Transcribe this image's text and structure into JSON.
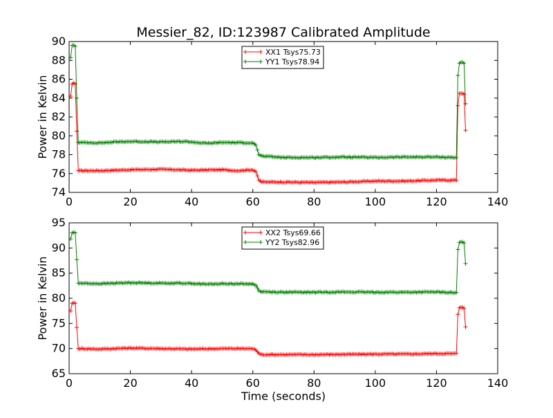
{
  "figure": {
    "title": "Messier_82, ID:123987 Calibrated Amplitude",
    "xlabel": "Time (seconds)"
  },
  "colors": {
    "xx": "#ff0000",
    "yy": "#008000"
  },
  "chart_data": [
    {
      "type": "line",
      "title": "Messier_82, ID:123987 Calibrated Amplitude",
      "xlabel": "",
      "ylabel": "Power in Kelvin",
      "xlim": [
        0,
        140
      ],
      "ylim": [
        74,
        90
      ],
      "xticks": [
        0,
        20,
        40,
        60,
        80,
        100,
        120,
        140
      ],
      "yticks": [
        74,
        76,
        78,
        80,
        82,
        84,
        86,
        88,
        90
      ],
      "legend_position": "top-center",
      "grid": false,
      "series": [
        {
          "name": "XX1 Tsys75.73",
          "color": "#ff0000",
          "points": [
            [
              0.5,
              84.2
            ],
            [
              1,
              85.5
            ],
            [
              1.5,
              85.6
            ],
            [
              2,
              85.5
            ],
            [
              2.5,
              80.5
            ],
            [
              3,
              76.3
            ],
            [
              10,
              76.3
            ],
            [
              15,
              76.35
            ],
            [
              20,
              76.4
            ],
            [
              30,
              76.45
            ],
            [
              40,
              76.35
            ],
            [
              50,
              76.4
            ],
            [
              55,
              76.3
            ],
            [
              60,
              76.4
            ],
            [
              61,
              76.2
            ],
            [
              62,
              75.3
            ],
            [
              63,
              75.1
            ],
            [
              70,
              75.1
            ],
            [
              80,
              75.05
            ],
            [
              90,
              75.1
            ],
            [
              100,
              75.2
            ],
            [
              110,
              75.2
            ],
            [
              120,
              75.3
            ],
            [
              126.5,
              75.3
            ],
            [
              127,
              83.2
            ],
            [
              127.5,
              84.5
            ],
            [
              128,
              84.5
            ],
            [
              128.5,
              84.5
            ],
            [
              129,
              84.4
            ],
            [
              129.5,
              80.6
            ]
          ]
        },
        {
          "name": "YY1 Tsys78.94",
          "color": "#008000",
          "points": [
            [
              0.5,
              88.3
            ],
            [
              1,
              89.6
            ],
            [
              1.5,
              89.6
            ],
            [
              2,
              89.5
            ],
            [
              2.5,
              84.0
            ],
            [
              3,
              79.3
            ],
            [
              10,
              79.25
            ],
            [
              15,
              79.35
            ],
            [
              20,
              79.4
            ],
            [
              30,
              79.35
            ],
            [
              38,
              79.4
            ],
            [
              45,
              79.2
            ],
            [
              50,
              79.3
            ],
            [
              60,
              79.25
            ],
            [
              61,
              79.0
            ],
            [
              62,
              78.0
            ],
            [
              63,
              77.85
            ],
            [
              70,
              77.7
            ],
            [
              80,
              77.7
            ],
            [
              90,
              77.75
            ],
            [
              100,
              77.7
            ],
            [
              110,
              77.75
            ],
            [
              120,
              77.75
            ],
            [
              126.5,
              77.7
            ],
            [
              127,
              86.4
            ],
            [
              127.5,
              87.7
            ],
            [
              128,
              87.8
            ],
            [
              128.5,
              87.8
            ],
            [
              129,
              87.7
            ],
            [
              129.5,
              83.4
            ]
          ]
        }
      ]
    },
    {
      "type": "line",
      "title": "",
      "xlabel": "Time (seconds)",
      "ylabel": "Power in Kelvin",
      "xlim": [
        0,
        140
      ],
      "ylim": [
        65,
        95
      ],
      "xticks": [
        0,
        20,
        40,
        60,
        80,
        100,
        120,
        140
      ],
      "yticks": [
        65,
        70,
        75,
        80,
        85,
        90,
        95
      ],
      "legend_position": "top-center",
      "grid": false,
      "series": [
        {
          "name": "XX2 Tsys69.66",
          "color": "#ff0000",
          "points": [
            [
              0.5,
              77.5
            ],
            [
              1,
              79.0
            ],
            [
              1.5,
              79.1
            ],
            [
              2,
              79.0
            ],
            [
              2.5,
              74.2
            ],
            [
              3,
              70.0
            ],
            [
              10,
              69.9
            ],
            [
              15,
              70.0
            ],
            [
              20,
              70.1
            ],
            [
              30,
              70.0
            ],
            [
              40,
              69.9
            ],
            [
              50,
              70.0
            ],
            [
              60,
              70.0
            ],
            [
              61,
              69.7
            ],
            [
              62,
              69.0
            ],
            [
              63,
              68.8
            ],
            [
              70,
              68.8
            ],
            [
              80,
              68.8
            ],
            [
              90,
              68.85
            ],
            [
              100,
              68.9
            ],
            [
              110,
              68.9
            ],
            [
              120,
              69.0
            ],
            [
              126.5,
              69.0
            ],
            [
              127,
              76.8
            ],
            [
              127.5,
              78.1
            ],
            [
              128,
              78.2
            ],
            [
              128.5,
              78.2
            ],
            [
              129,
              78.0
            ],
            [
              129.5,
              74.3
            ]
          ]
        },
        {
          "name": "YY2 Tsys82.96",
          "color": "#008000",
          "points": [
            [
              0.5,
              91.8
            ],
            [
              1,
              93.0
            ],
            [
              1.5,
              93.1
            ],
            [
              2,
              93.0
            ],
            [
              2.5,
              87.7
            ],
            [
              3,
              83.0
            ],
            [
              10,
              82.9
            ],
            [
              15,
              83.0
            ],
            [
              20,
              83.1
            ],
            [
              30,
              83.0
            ],
            [
              38,
              83.0
            ],
            [
              45,
              82.8
            ],
            [
              50,
              82.9
            ],
            [
              60,
              82.85
            ],
            [
              61,
              82.6
            ],
            [
              62,
              81.5
            ],
            [
              63,
              81.3
            ],
            [
              70,
              81.2
            ],
            [
              80,
              81.2
            ],
            [
              90,
              81.25
            ],
            [
              100,
              81.2
            ],
            [
              110,
              81.2
            ],
            [
              120,
              81.25
            ],
            [
              126.5,
              81.1
            ],
            [
              127,
              89.7
            ],
            [
              127.5,
              91.1
            ],
            [
              128,
              91.2
            ],
            [
              128.5,
              91.2
            ],
            [
              129,
              91.0
            ],
            [
              129.5,
              86.9
            ]
          ]
        }
      ]
    }
  ]
}
